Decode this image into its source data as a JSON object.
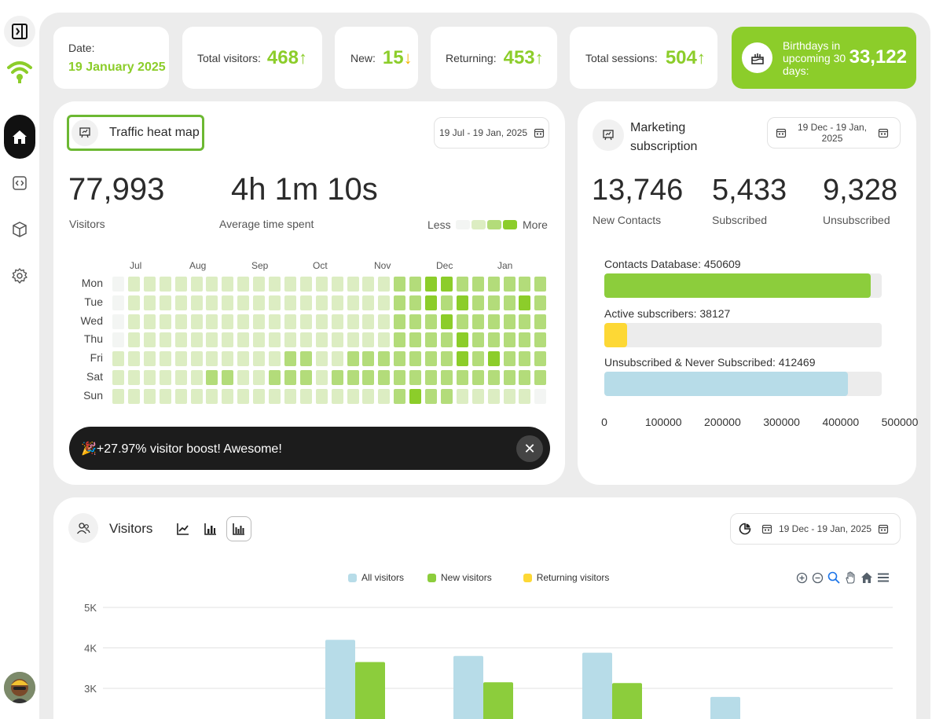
{
  "colors": {
    "accent": "#8ccd2a",
    "alert": "#f4b400",
    "dark": "#111111",
    "light_blue": "#b7dce8",
    "yellow": "#fdd835"
  },
  "sidebar": {
    "items": [
      {
        "name": "sidebar-toggle",
        "icon": "panel-toggle-icon"
      },
      {
        "name": "logo",
        "icon": "wifi-logo-icon"
      },
      {
        "name": "home",
        "icon": "home-icon"
      },
      {
        "name": "embed",
        "icon": "code-icon"
      },
      {
        "name": "box",
        "icon": "cube-icon"
      },
      {
        "name": "settings",
        "icon": "gear-icon"
      }
    ]
  },
  "stats": {
    "date_label": "Date:",
    "date_value": "19 January 2025",
    "total_visitors_label": "Total visitors:",
    "total_visitors_value": "468",
    "total_visitors_arrow": "↑",
    "new_label": "New:",
    "new_value": "15",
    "new_arrow": "↓",
    "returning_label": "Returning:",
    "returning_value": "453",
    "returning_arrow": "↑",
    "sessions_label": "Total sessions:",
    "sessions_value": "504",
    "sessions_arrow": "↑",
    "birthdays_label": "Birthdays in upcoming 30 days:",
    "birthdays_value": "33,122"
  },
  "heatmap": {
    "title": "Traffic heat map",
    "date_range": "19 Jul - 19 Jan, 2025",
    "visitors_value": "77,993",
    "visitors_label": "Visitors",
    "avg_time_value": "4h 1m 10s",
    "avg_time_label": "Average time spent",
    "legend_less": "Less",
    "legend_more": "More",
    "months": [
      "Jul",
      "Aug",
      "Sep",
      "Oct",
      "Nov",
      "Dec",
      "Jan"
    ],
    "days": [
      "Mon",
      "Tue",
      "Wed",
      "Thu",
      "Fri",
      "Sat",
      "Sun"
    ],
    "levels": [
      [
        0,
        1,
        1,
        1,
        1,
        1,
        1,
        1,
        1,
        1,
        1,
        1,
        1,
        1,
        1,
        1,
        1,
        1,
        2,
        2,
        3,
        3,
        2,
        2,
        2,
        2,
        2,
        2
      ],
      [
        0,
        1,
        1,
        1,
        1,
        1,
        1,
        1,
        1,
        1,
        1,
        1,
        1,
        1,
        1,
        1,
        1,
        1,
        2,
        2,
        3,
        2,
        3,
        2,
        2,
        2,
        3,
        2
      ],
      [
        0,
        1,
        1,
        1,
        1,
        1,
        1,
        1,
        1,
        1,
        1,
        1,
        1,
        1,
        1,
        1,
        1,
        1,
        2,
        2,
        2,
        3,
        2,
        2,
        2,
        2,
        2,
        2
      ],
      [
        0,
        1,
        1,
        1,
        1,
        1,
        1,
        1,
        1,
        1,
        1,
        1,
        1,
        1,
        1,
        1,
        1,
        1,
        2,
        2,
        2,
        2,
        3,
        2,
        2,
        2,
        2,
        2
      ],
      [
        1,
        1,
        1,
        1,
        1,
        1,
        1,
        1,
        1,
        1,
        1,
        2,
        2,
        1,
        1,
        2,
        2,
        2,
        2,
        2,
        2,
        2,
        3,
        2,
        3,
        2,
        2,
        2
      ],
      [
        1,
        1,
        1,
        1,
        1,
        1,
        2,
        2,
        1,
        1,
        2,
        2,
        2,
        1,
        2,
        2,
        2,
        2,
        2,
        2,
        2,
        2,
        2,
        2,
        2,
        2,
        2,
        2
      ],
      [
        1,
        1,
        1,
        1,
        1,
        1,
        1,
        1,
        1,
        1,
        1,
        1,
        1,
        1,
        1,
        1,
        1,
        1,
        2,
        3,
        2,
        2,
        1,
        1,
        1,
        1,
        1,
        0
      ]
    ],
    "toast_text": "🎉+27.97% visitor boost! Awesome!",
    "toast_close": "✕"
  },
  "marketing": {
    "title_line1": "Marketing",
    "title_line2": "subscription",
    "date_range_line1": "19 Dec - 19 Jan,",
    "date_range_line2": "2025",
    "new_contacts_value": "13,746",
    "new_contacts_label": "New Contacts",
    "subscribed_value": "5,433",
    "subscribed_label": "Subscribed",
    "unsubscribed_value": "9,328",
    "unsubscribed_label": "Unsubscribed",
    "bars": [
      {
        "label": "Contacts Database: 450609",
        "value": 450609,
        "color": "#8ccd3c"
      },
      {
        "label": "Active subscribers: 38127",
        "value": 38127,
        "color": "#fdd835"
      },
      {
        "label": "Unsubscribed & Never Subscribed: 412469",
        "value": 412469,
        "color": "#b7dce8"
      }
    ],
    "axis_max": 500000,
    "axis_ticks": [
      "0",
      "100000",
      "200000",
      "300000",
      "400000",
      "500000"
    ]
  },
  "visitors": {
    "title": "Visitors",
    "date_range": "19 Dec - 19 Jan, 2025",
    "legend": [
      {
        "name": "All visitors",
        "color": "#b7dce8"
      },
      {
        "name": "New visitors",
        "color": "#8ccd3c"
      },
      {
        "name": "Returning visitors",
        "color": "#fdd835"
      }
    ],
    "toolbar_icons": [
      "zoom-in-icon",
      "zoom-out-icon",
      "zoom-select-icon",
      "pan-icon",
      "reset-home-icon",
      "menu-icon"
    ]
  },
  "chart_data": {
    "type": "bar",
    "ylabel": "",
    "xlabel": "",
    "y_ticks": [
      "5K",
      "4K",
      "3K"
    ],
    "ylim": [
      2600,
      5000
    ],
    "series": [
      {
        "name": "All visitors",
        "values": [
          4200,
          3800,
          3880,
          2790
        ]
      },
      {
        "name": "New visitors",
        "values": [
          3650,
          3150,
          3130,
          null
        ]
      }
    ],
    "legend_placement": "top-center"
  }
}
